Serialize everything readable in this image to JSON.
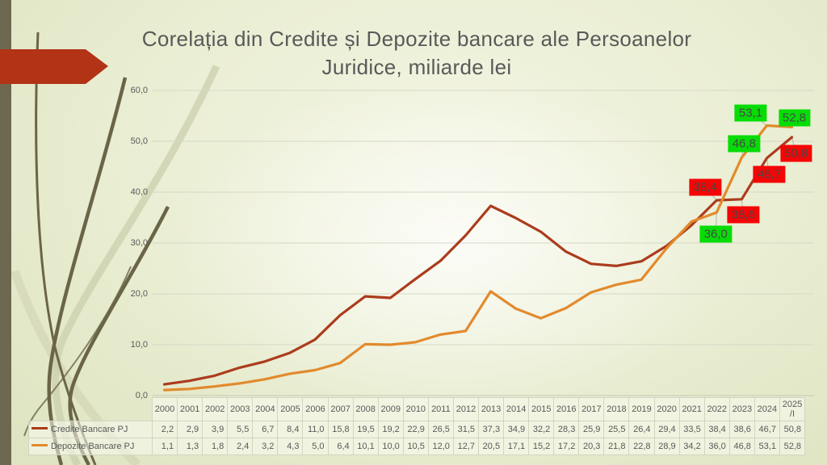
{
  "slide": {
    "title_line1": "Corelația din Credite și Depozite bancare ale Persoanelor",
    "title_line2": "Juridice, miliarde lei"
  },
  "chart_data": {
    "type": "line",
    "title": "Corelația din Credite și Depozite bancare ale Persoanelor Juridice, miliarde lei",
    "ylabel": "",
    "xlabel": "",
    "ylim": [
      0,
      60
    ],
    "y_tick_step": 10,
    "y_tick_labels": [
      "0,0",
      "10,0",
      "20,0",
      "30,0",
      "40,0",
      "50,0",
      "60,0"
    ],
    "grid": "horizontal",
    "legend_position": "table-left",
    "categories": [
      "2000",
      "2001",
      "2002",
      "2003",
      "2004",
      "2005",
      "2006",
      "2007",
      "2008",
      "2009",
      "2010",
      "2011",
      "2012",
      "2013",
      "2014",
      "2015",
      "2016",
      "2017",
      "2018",
      "2019",
      "2020",
      "2021",
      "2022",
      "2023",
      "2024",
      "2025/I"
    ],
    "series": [
      {
        "name": "Credite Bancare PJ",
        "color": "#ab3c1d",
        "values": [
          2.2,
          2.9,
          3.9,
          5.5,
          6.7,
          8.4,
          11.0,
          15.8,
          19.5,
          19.2,
          22.9,
          26.5,
          31.5,
          37.3,
          34.9,
          32.2,
          28.3,
          25.9,
          25.5,
          26.4,
          29.4,
          33.5,
          38.4,
          38.6,
          46.7,
          50.8
        ],
        "values_display": [
          "2,2",
          "2,9",
          "3,9",
          "5,5",
          "6,7",
          "8,4",
          "11,0",
          "15,8",
          "19,5",
          "19,2",
          "22,9",
          "26,5",
          "31,5",
          "37,3",
          "34,9",
          "32,2",
          "28,3",
          "25,9",
          "25,5",
          "26,4",
          "29,4",
          "33,5",
          "38,4",
          "38,6",
          "46,7",
          "50,8"
        ]
      },
      {
        "name": "Depozite Bancare PJ",
        "color": "#e28a2d",
        "values": [
          1.1,
          1.3,
          1.8,
          2.4,
          3.2,
          4.3,
          5.0,
          6.4,
          10.1,
          10.0,
          10.5,
          12.0,
          12.7,
          20.5,
          17.1,
          15.2,
          17.2,
          20.3,
          21.8,
          22.8,
          28.9,
          34.2,
          36.0,
          46.8,
          53.1,
          52.8
        ],
        "values_display": [
          "1,1",
          "1,3",
          "1,8",
          "2,4",
          "3,2",
          "4,3",
          "5,0",
          "6,4",
          "10,1",
          "10,0",
          "10,5",
          "12,0",
          "12,7",
          "20,5",
          "17,1",
          "15,2",
          "17,2",
          "20,3",
          "21,8",
          "22,8",
          "28,9",
          "34,2",
          "36,0",
          "46,8",
          "53,1",
          "52,8"
        ]
      }
    ],
    "data_labels": [
      {
        "series": 0,
        "index": 22,
        "text": "38,4",
        "bg": "#f50505"
      },
      {
        "series": 0,
        "index": 23,
        "text": "38,6",
        "bg": "#f50505"
      },
      {
        "series": 0,
        "index": 24,
        "text": "46,7",
        "bg": "#f50505"
      },
      {
        "series": 0,
        "index": 25,
        "text": "50,8",
        "bg": "#f50505"
      },
      {
        "series": 1,
        "index": 22,
        "text": "36,0",
        "bg": "#06dd06"
      },
      {
        "series": 1,
        "index": 23,
        "text": "46,8",
        "bg": "#06dd06"
      },
      {
        "series": 1,
        "index": 24,
        "text": "53,1",
        "bg": "#06dd06"
      },
      {
        "series": 1,
        "index": 25,
        "text": "52,8",
        "bg": "#06dd06"
      }
    ]
  }
}
